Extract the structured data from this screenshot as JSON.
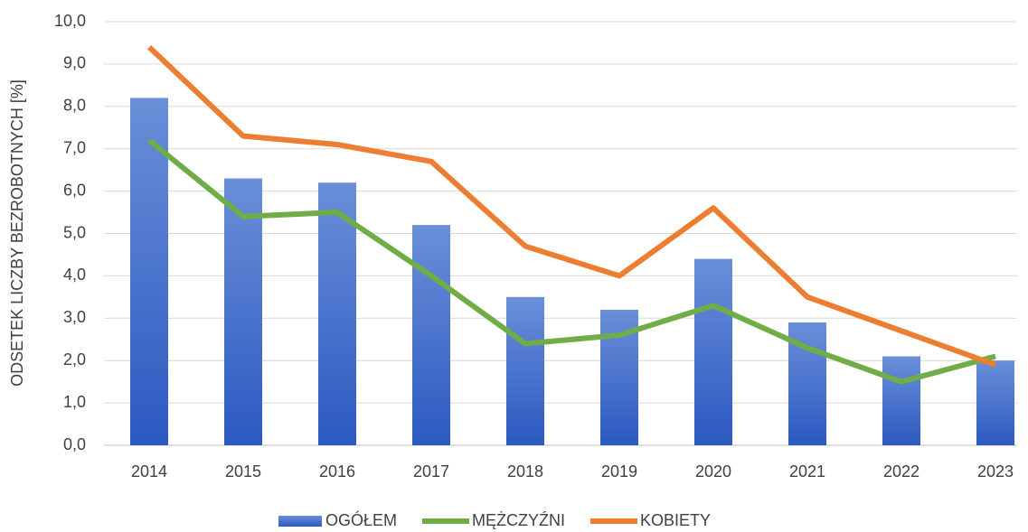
{
  "chart_data": {
    "type": "combo",
    "ylabel": "ODSETEK LICZBY BEZROBOTNYCH [%]",
    "categories": [
      "2014",
      "2015",
      "2016",
      "2017",
      "2018",
      "2019",
      "2020",
      "2021",
      "2022",
      "2023"
    ],
    "series": [
      {
        "name": "OGÓŁEM",
        "type": "bar",
        "color": "#4472c4",
        "values": [
          8.2,
          6.3,
          6.2,
          5.2,
          3.5,
          3.2,
          4.4,
          2.9,
          2.1,
          2.0
        ]
      },
      {
        "name": "MĘŻCZYŹNI",
        "type": "line",
        "color": "#70ad47",
        "values": [
          7.2,
          5.4,
          5.5,
          4.0,
          2.4,
          2.6,
          3.3,
          2.3,
          1.5,
          2.1
        ]
      },
      {
        "name": "KOBIETY",
        "type": "line",
        "color": "#ed7d31",
        "values": [
          9.4,
          7.3,
          7.1,
          6.7,
          4.7,
          4.0,
          5.6,
          3.5,
          2.7,
          1.9
        ]
      }
    ],
    "ylim": [
      0,
      10
    ],
    "yticks": [
      {
        "value": 0,
        "label": "0,0"
      },
      {
        "value": 1,
        "label": "1,0"
      },
      {
        "value": 2,
        "label": "2,0"
      },
      {
        "value": 3,
        "label": "3,0"
      },
      {
        "value": 4,
        "label": "4,0"
      },
      {
        "value": 5,
        "label": "5,0"
      },
      {
        "value": 6,
        "label": "6,0"
      },
      {
        "value": 7,
        "label": "7,0"
      },
      {
        "value": 8,
        "label": "8,0"
      },
      {
        "value": 9,
        "label": "9,0"
      },
      {
        "value": 10,
        "label": "10,0"
      }
    ],
    "grid": true,
    "legend": "bottom"
  }
}
